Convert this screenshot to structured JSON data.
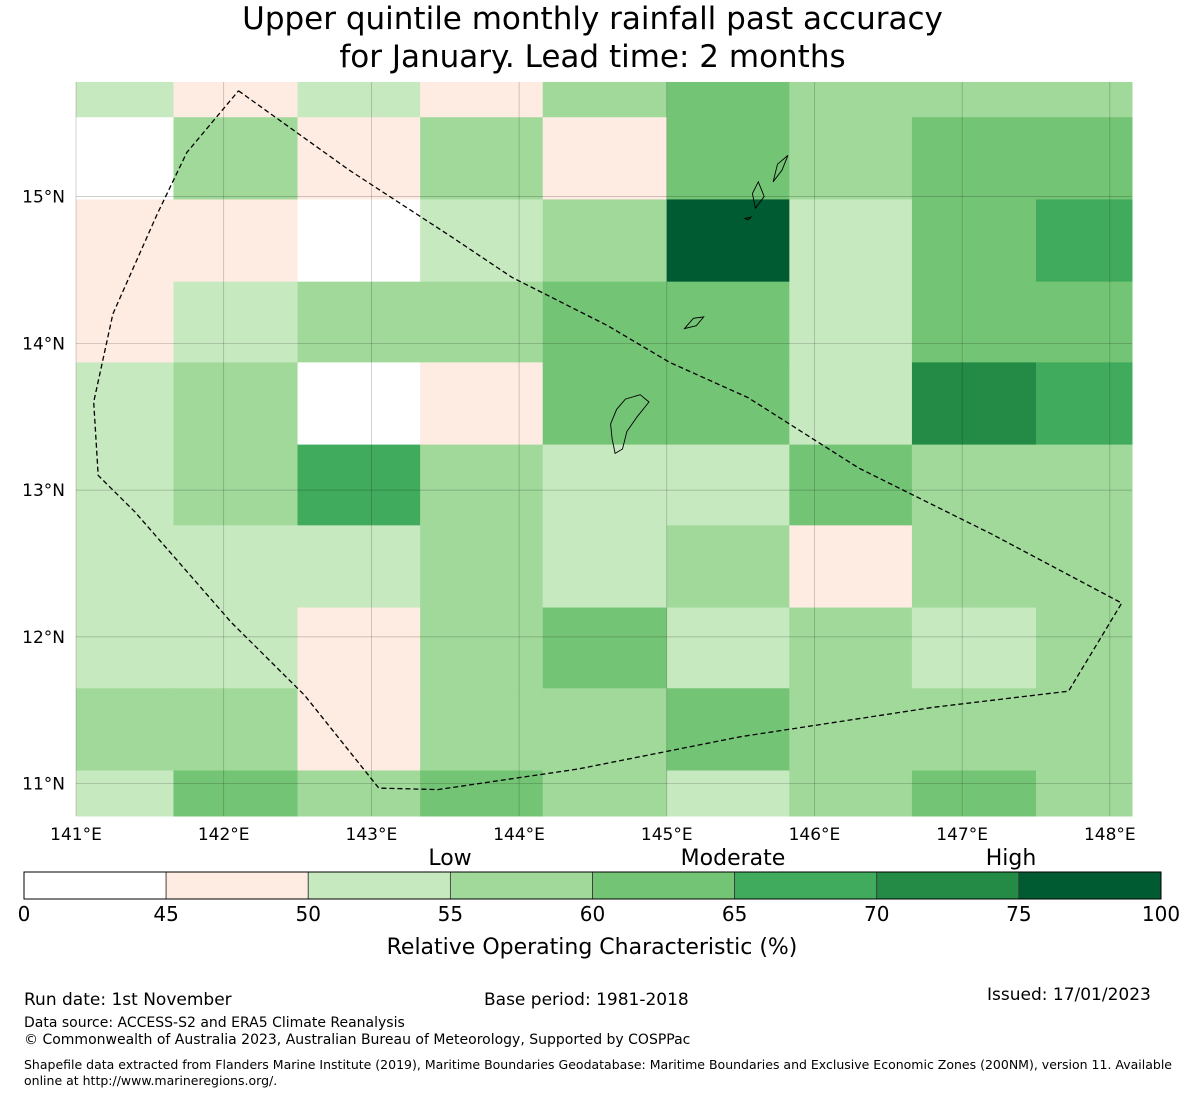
{
  "chart_data": {
    "type": "heatmap",
    "title": "Upper quintile monthly rainfall past accuracy for January. Lead time: 2 months",
    "title_lines": [
      "Upper quintile monthly rainfall past accuracy",
      "for January. Lead time: 2 months"
    ],
    "xlim": [
      141.0,
      148.15
    ],
    "ylim": [
      10.78,
      15.78
    ],
    "x_ticks": [
      141,
      142,
      143,
      144,
      145,
      146,
      147,
      148
    ],
    "x_tick_labels": [
      "141°E",
      "142°E",
      "143°E",
      "144°E",
      "145°E",
      "146°E",
      "147°E",
      "148°E"
    ],
    "y_ticks": [
      11,
      12,
      13,
      14,
      15
    ],
    "y_tick_labels": [
      "11°N",
      "12°N",
      "13°N",
      "14°N",
      "15°N"
    ],
    "grid": true,
    "cell_lon_edges": [
      141.0,
      141.66,
      142.5,
      143.33,
      144.16,
      145.0,
      145.83,
      146.66,
      147.5,
      148.15
    ],
    "cell_lat_edges": [
      15.78,
      15.54,
      14.98,
      14.42,
      13.87,
      13.31,
      12.76,
      12.2,
      11.65,
      11.09,
      10.78
    ],
    "roc_category_rows_north_to_south": [
      [
        2,
        1,
        2,
        1,
        3,
        4,
        3,
        3,
        3
      ],
      [
        0,
        3,
        1,
        3,
        1,
        4,
        3,
        4,
        4
      ],
      [
        1,
        1,
        0,
        2,
        3,
        7,
        2,
        4,
        5
      ],
      [
        1,
        2,
        3,
        3,
        4,
        4,
        2,
        4,
        4
      ],
      [
        2,
        3,
        0,
        1,
        4,
        4,
        2,
        6,
        5
      ],
      [
        2,
        3,
        5,
        3,
        2,
        2,
        4,
        3,
        3
      ],
      [
        2,
        2,
        2,
        3,
        2,
        3,
        1,
        3,
        3
      ],
      [
        2,
        2,
        1,
        3,
        4,
        2,
        3,
        2,
        3
      ],
      [
        3,
        3,
        1,
        3,
        3,
        4,
        3,
        3,
        3
      ],
      [
        2,
        4,
        3,
        4,
        3,
        2,
        3,
        4,
        3
      ]
    ],
    "colorbar": {
      "bounds": [
        0,
        45,
        50,
        55,
        60,
        65,
        70,
        75,
        100
      ],
      "tick_labels": [
        "0",
        "45",
        "50",
        "55",
        "60",
        "65",
        "70",
        "75",
        "100"
      ],
      "colors": [
        "#ffffff",
        "#feebe2",
        "#c7e9c0",
        "#a1d99b",
        "#74c476",
        "#41ab5d",
        "#238b45",
        "#005a32"
      ],
      "category_labels": [
        "Low",
        "Moderate",
        "High"
      ],
      "label": "Relative Operating Characteristic (%)"
    },
    "eez_boundary_lonlat": [
      [
        142.1,
        15.72
      ],
      [
        142.85,
        15.18
      ],
      [
        143.55,
        14.72
      ],
      [
        143.95,
        14.45
      ],
      [
        144.6,
        14.12
      ],
      [
        145.02,
        13.87
      ],
      [
        145.55,
        13.63
      ],
      [
        146.3,
        13.15
      ],
      [
        147.2,
        12.7
      ],
      [
        148.08,
        12.23
      ],
      [
        147.72,
        11.63
      ],
      [
        146.8,
        11.52
      ],
      [
        145.5,
        11.32
      ],
      [
        144.4,
        11.1
      ],
      [
        143.45,
        10.96
      ],
      [
        143.05,
        10.97
      ],
      [
        142.55,
        11.6
      ],
      [
        142.05,
        12.1
      ],
      [
        141.4,
        12.85
      ],
      [
        141.15,
        13.1
      ],
      [
        141.12,
        13.6
      ],
      [
        141.25,
        14.2
      ],
      [
        141.55,
        14.88
      ],
      [
        141.75,
        15.3
      ],
      [
        142.1,
        15.72
      ]
    ],
    "islands_lonlat": [
      [
        [
          144.65,
          13.25
        ],
        [
          144.63,
          13.35
        ],
        [
          144.62,
          13.45
        ],
        [
          144.66,
          13.55
        ],
        [
          144.72,
          13.62
        ],
        [
          144.82,
          13.65
        ],
        [
          144.88,
          13.6
        ],
        [
          144.8,
          13.5
        ],
        [
          144.73,
          13.4
        ],
        [
          144.7,
          13.28
        ],
        [
          144.65,
          13.25
        ]
      ],
      [
        [
          145.12,
          14.1
        ],
        [
          145.18,
          14.17
        ],
        [
          145.25,
          14.18
        ],
        [
          145.2,
          14.12
        ],
        [
          145.12,
          14.1
        ]
      ],
      [
        [
          145.6,
          14.92
        ],
        [
          145.58,
          15.02
        ],
        [
          145.62,
          15.1
        ],
        [
          145.66,
          15.0
        ],
        [
          145.6,
          14.92
        ]
      ],
      [
        [
          145.72,
          15.1
        ],
        [
          145.75,
          15.22
        ],
        [
          145.82,
          15.28
        ],
        [
          145.78,
          15.18
        ],
        [
          145.72,
          15.1
        ]
      ],
      [
        [
          145.53,
          14.85
        ],
        [
          145.57,
          14.86
        ],
        [
          145.55,
          14.84
        ],
        [
          145.53,
          14.85
        ]
      ]
    ]
  },
  "footer": {
    "run_date": "Run date: 1st November",
    "base_period": "Base period: 1981-2018",
    "issued": "Issued: 17/01/2023",
    "data_source": "Data source: ACCESS-S2 and ERA5 Climate Reanalysis",
    "copyright": "© Commonwealth of Australia 2023, Australian Bureau of Meteorology, Supported by COSPPac",
    "shapefile_credit": "Shapefile data extracted from Flanders Marine Institute (2019), Maritime Boundaries Geodatabase: Maritime Boundaries and Exclusive Economic Zones (200NM), version 11. Available online at http://www.marineregions.org/."
  }
}
